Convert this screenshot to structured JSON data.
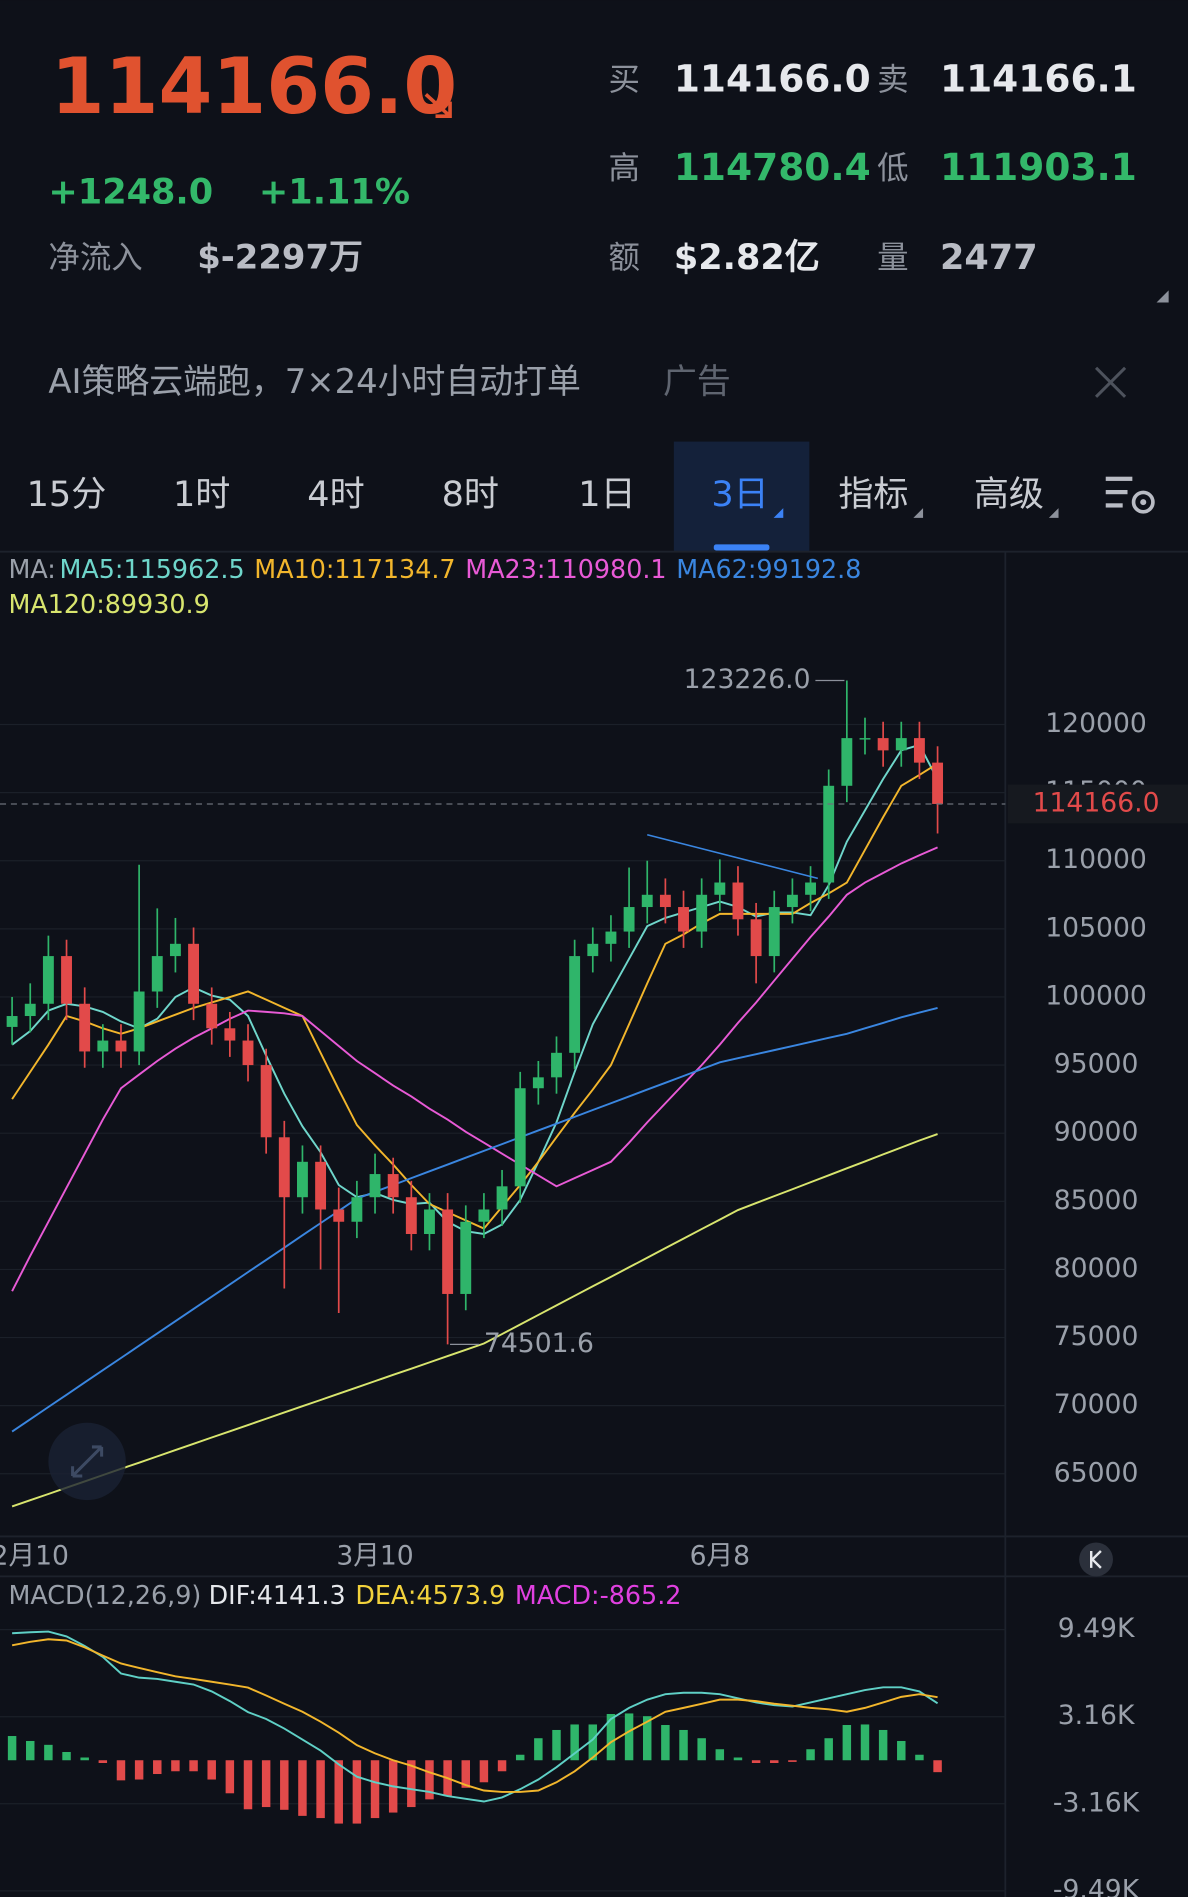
{
  "header": {
    "price": "114166.0",
    "change": "+1248.0",
    "change_pct": "+1.11%",
    "net_inflow_label": "净流入",
    "net_inflow": "$-2297万",
    "stats": [
      {
        "label": "买",
        "value": "114166.0"
      },
      {
        "label": "卖",
        "value": "114166.1"
      },
      {
        "label": "高",
        "value": "114780.4"
      },
      {
        "label": "低",
        "value": "111903.1"
      },
      {
        "label": "额",
        "value": "$2.82亿"
      },
      {
        "label": "量",
        "value": "2477"
      }
    ]
  },
  "ad": {
    "text": "AI策略云端跑，7×24小时自动打单",
    "tag": "广告"
  },
  "tabs": [
    "15分",
    "1时",
    "4时",
    "8时",
    "1日",
    "3日",
    "指标",
    "高级"
  ],
  "active_tab_index": 5,
  "chart_data": [
    {
      "type": "candlestick",
      "legend_prefix": "MA:",
      "up_color": "#2fb56a",
      "down_color": "#e24a4a",
      "ylim": [
        60400,
        127000
      ],
      "yticks": [
        65000,
        70000,
        75000,
        80000,
        85000,
        90000,
        95000,
        100000,
        105000,
        110000,
        115000,
        120000
      ],
      "grid": true,
      "xticks": [
        {
          "value": 1,
          "label": "2月10"
        },
        {
          "value": 20,
          "label": "3月10"
        },
        {
          "value": 39,
          "label": "6月8"
        }
      ],
      "last_price": {
        "value": 114166.0,
        "label": "114166.0"
      },
      "annotations": [
        {
          "value": 123226.0,
          "label": "123226.0",
          "kind": "high"
        },
        {
          "value": 74501.6,
          "label": "74501.6",
          "kind": "low"
        }
      ],
      "ohlc": [
        [
          97800,
          100000,
          96500,
          98600
        ],
        [
          98600,
          101000,
          97400,
          99500
        ],
        [
          99500,
          104500,
          98300,
          103000
        ],
        [
          103000,
          104200,
          98300,
          99500
        ],
        [
          99500,
          100700,
          94800,
          96000
        ],
        [
          96000,
          98000,
          94800,
          96800
        ],
        [
          96800,
          98000,
          94800,
          96000
        ],
        [
          96000,
          109700,
          95000,
          100400
        ],
        [
          100400,
          106500,
          99200,
          103000
        ],
        [
          103000,
          105800,
          101800,
          103900
        ],
        [
          103900,
          105100,
          98300,
          99500
        ],
        [
          99500,
          100700,
          96500,
          97700
        ],
        [
          97700,
          98900,
          95600,
          96800
        ],
        [
          96800,
          98000,
          93800,
          95000
        ],
        [
          95000,
          96200,
          88500,
          89700
        ],
        [
          89700,
          90900,
          78600,
          85300
        ],
        [
          85300,
          89100,
          84100,
          87900
        ],
        [
          87900,
          89100,
          80000,
          84400
        ],
        [
          84400,
          86000,
          76800,
          83500
        ],
        [
          83500,
          86500,
          82300,
          85300
        ],
        [
          85300,
          88500,
          84100,
          87000
        ],
        [
          87000,
          88200,
          84100,
          85300
        ],
        [
          85300,
          86500,
          81400,
          82600
        ],
        [
          82600,
          85600,
          81400,
          84400
        ],
        [
          84400,
          85600,
          74501.6,
          78200
        ],
        [
          78200,
          84700,
          77000,
          83500
        ],
        [
          83500,
          85600,
          82300,
          84400
        ],
        [
          84400,
          87300,
          83200,
          86100
        ],
        [
          86100,
          94500,
          84900,
          93300
        ],
        [
          93300,
          95300,
          92100,
          94100
        ],
        [
          94100,
          97100,
          92900,
          95900
        ],
        [
          95900,
          104200,
          94700,
          103000
        ],
        [
          103000,
          105100,
          101800,
          103900
        ],
        [
          103900,
          106000,
          102600,
          104800
        ],
        [
          104800,
          109500,
          103600,
          106600
        ],
        [
          106600,
          110000,
          105400,
          107500
        ],
        [
          107500,
          108700,
          105400,
          106600
        ],
        [
          106600,
          107800,
          103600,
          104800
        ],
        [
          104800,
          108700,
          103600,
          107500
        ],
        [
          107500,
          110100,
          106300,
          108400
        ],
        [
          108400,
          109600,
          104500,
          105700
        ],
        [
          105700,
          106900,
          101000,
          103000
        ],
        [
          103000,
          107800,
          101800,
          106600
        ],
        [
          106600,
          108700,
          105400,
          107500
        ],
        [
          107500,
          109600,
          106300,
          108400
        ],
        [
          108400,
          116700,
          107200,
          115500
        ],
        [
          115500,
          123226.0,
          114300,
          119000
        ],
        [
          119000,
          120500,
          117800,
          119000
        ],
        [
          119000,
          120200,
          116900,
          118100
        ],
        [
          118100,
          120200,
          116900,
          119000
        ],
        [
          119000,
          120200,
          116000,
          117200
        ],
        [
          117200,
          118400,
          112000,
          114166.0
        ]
      ],
      "series": [
        {
          "name": "MA5:115962.5",
          "color": "#6fd6cb",
          "values": [
            96500,
            97500,
            99000,
            99500,
            99300,
            98900,
            98200,
            97700,
            98400,
            100000,
            100700,
            100100,
            99800,
            98600,
            95700,
            92900,
            90500,
            88600,
            86200,
            85300,
            85600,
            85100,
            84800,
            84900,
            83500,
            82800,
            82600,
            83300,
            85100,
            87900,
            90800,
            94500,
            98000,
            100400,
            102800,
            105200,
            105800,
            106200,
            106600,
            107000,
            106600,
            105900,
            106200,
            106200,
            106000,
            108200,
            111400,
            113700,
            116000,
            118100,
            118500,
            115962.5
          ]
        },
        {
          "name": "MA10:117134.7",
          "color": "#f2b62c",
          "values": [
            92500,
            94500,
            96500,
            98600,
            98200,
            97700,
            97300,
            97700,
            98200,
            98700,
            99200,
            99600,
            100000,
            100400,
            99800,
            99200,
            98600,
            95900,
            93200,
            90600,
            89100,
            87700,
            86200,
            84800,
            84200,
            83600,
            83000,
            84600,
            86200,
            87900,
            89700,
            91500,
            93200,
            95000,
            98000,
            101000,
            103900,
            104600,
            105400,
            106100,
            106100,
            106100,
            106100,
            106100,
            106900,
            107600,
            108400,
            110800,
            113200,
            115500,
            116300,
            117134.7
          ]
        },
        {
          "name": "MA23:110980.1",
          "color": "#e85ad6",
          "values": [
            78400,
            81000,
            83500,
            86000,
            88500,
            91000,
            93300,
            94300,
            95300,
            96200,
            97000,
            97700,
            98400,
            99000,
            98900,
            98800,
            98600,
            97500,
            96400,
            95300,
            94400,
            93500,
            92700,
            91800,
            91000,
            90100,
            89300,
            88500,
            87700,
            86900,
            86100,
            86700,
            87300,
            87900,
            89300,
            90800,
            92200,
            93600,
            95000,
            96500,
            98100,
            99600,
            101200,
            102800,
            104400,
            105900,
            107500,
            108400,
            109100,
            109800,
            110400,
            110980.1
          ]
        },
        {
          "name": "MA62:99192.8",
          "color": "#3a86e0",
          "values": [
            68100,
            69000,
            69900,
            70800,
            71700,
            72600,
            73500,
            74400,
            75300,
            76200,
            77100,
            78000,
            78900,
            79800,
            80700,
            81600,
            82500,
            83400,
            84300,
            85200,
            85700,
            86200,
            86700,
            87200,
            87700,
            88200,
            88700,
            89200,
            89700,
            90200,
            90700,
            91200,
            91700,
            92200,
            92700,
            93200,
            93700,
            94200,
            94700,
            95200,
            95500,
            95800,
            96100,
            96400,
            96700,
            97000,
            97300,
            97700,
            98100,
            98500,
            98850,
            99192.8
          ]
        },
        {
          "name": "MA120:89930.9",
          "color": "#d8e56e",
          "values": [
            62600,
            63060,
            63520,
            63980,
            64440,
            64900,
            65360,
            65820,
            66280,
            66740,
            67200,
            67660,
            68120,
            68580,
            69040,
            69500,
            69960,
            70420,
            70880,
            71340,
            71800,
            72260,
            72720,
            73180,
            73640,
            74100,
            74560,
            75260,
            75960,
            76660,
            77360,
            78060,
            78760,
            79460,
            80160,
            80860,
            81560,
            82260,
            82960,
            83660,
            84360,
            84870,
            85380,
            85890,
            86400,
            86910,
            87420,
            87930,
            88440,
            88950,
            89460,
            89930.9
          ]
        }
      ]
    },
    {
      "type": "macd",
      "title": "MACD(12,26,9)",
      "ylim": [
        -9930,
        13180
      ],
      "yticks": [
        {
          "value": 9490,
          "label": "9.49K"
        },
        {
          "value": 3160,
          "label": "3.16K"
        },
        {
          "value": -3160,
          "label": "-3.16K"
        },
        {
          "value": -9490,
          "label": "-9.49K"
        }
      ],
      "up_color": "#2fb56a",
      "down_color": "#e24a4a",
      "series": [
        {
          "name": "DIF:4141.3",
          "color": "#5fd0c6",
          "legend_color": "#e6e8ec",
          "values": [
            9230,
            9300,
            9350,
            9000,
            8300,
            7500,
            6300,
            6000,
            5900,
            5700,
            5500,
            5000,
            4300,
            3500,
            3000,
            2300,
            1500,
            700,
            -300,
            -1200,
            -1600,
            -1900,
            -2100,
            -2300,
            -2600,
            -2800,
            -3000,
            -2700,
            -2100,
            -1400,
            -500,
            500,
            1500,
            3000,
            3800,
            4400,
            4800,
            4900,
            4900,
            4800,
            4500,
            4200,
            4000,
            3900,
            4200,
            4500,
            4800,
            5100,
            5300,
            5300,
            5000,
            4141.3
          ]
        },
        {
          "name": "DEA:4573.9",
          "color": "#f2b62c",
          "legend_color": "#f2d23c",
          "values": [
            8350,
            8600,
            8790,
            8700,
            8200,
            7600,
            7030,
            6700,
            6400,
            6100,
            5900,
            5700,
            5500,
            5280,
            4700,
            4100,
            3520,
            2800,
            2000,
            1100,
            500,
            0,
            -400,
            -880,
            -1300,
            -1800,
            -2200,
            -2300,
            -2300,
            -2200,
            -1600,
            -800,
            200,
            1320,
            2100,
            2800,
            3520,
            3800,
            4100,
            4400,
            4400,
            4300,
            4100,
            3960,
            3800,
            3700,
            3520,
            3800,
            4200,
            4600,
            4800,
            4573.9
          ]
        },
        {
          "name": "MACD:-865.2",
          "type": "bar",
          "legend_color": "#e040e0",
          "values": [
            1760,
            1400,
            1120,
            600,
            200,
            -200,
            -1460,
            -1400,
            -1000,
            -800,
            -800,
            -1400,
            -2400,
            -3560,
            -3400,
            -3600,
            -4040,
            -4200,
            -4600,
            -4600,
            -4200,
            -3800,
            -3400,
            -2840,
            -2600,
            -2000,
            -1600,
            -800,
            400,
            1600,
            2200,
            2600,
            2600,
            3360,
            3400,
            3200,
            2560,
            2200,
            1600,
            800,
            200,
            -200,
            -200,
            -120,
            800,
            1600,
            2560,
            2600,
            2200,
            1400,
            400,
            -865.2
          ]
        }
      ]
    }
  ]
}
